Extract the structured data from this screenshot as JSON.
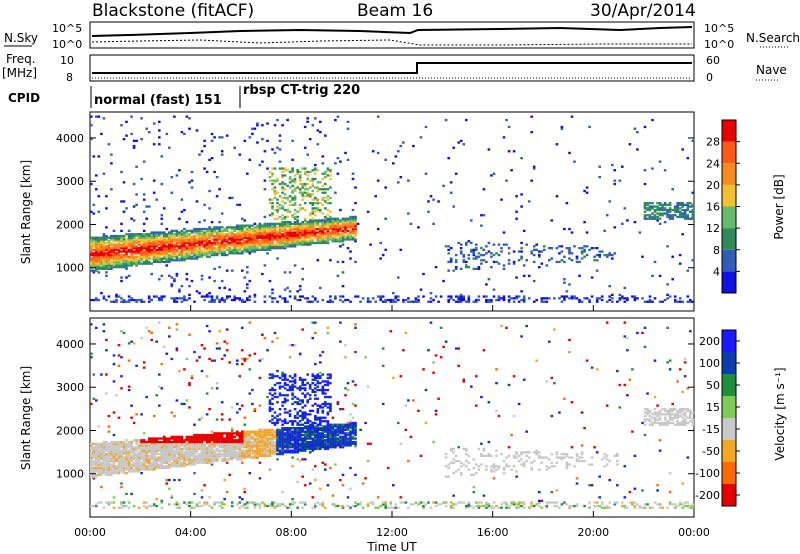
{
  "header": {
    "station": "Blackstone (fitACF)",
    "beam": "Beam 16",
    "date": "30/Apr/2014"
  },
  "top_panels": {
    "nsky_label": "N.Sky",
    "nsearch_label": "N.Search",
    "freq_label": "Freq.",
    "freq_unit": "[MHz]",
    "nave_label": "Nave",
    "cpid_label": "CPID",
    "nsky_ticks_left": [
      "10^5",
      "10^0"
    ],
    "nsky_ticks_right": [
      "10^5",
      "10^0"
    ],
    "freq_ticks": [
      "10",
      "8"
    ],
    "nave_ticks": [
      "60",
      "0"
    ],
    "cpid_segments": [
      {
        "label": "normal (fast) 151",
        "start_h": 0,
        "end_h": 6
      },
      {
        "label": "rbsp CT-trig 220",
        "start_h": 6,
        "end_h": 24
      }
    ]
  },
  "chart_data": [
    {
      "type": "heatmap",
      "title": "",
      "xlabel": "",
      "ylabel": "Slant Range [km]",
      "xlim": [
        0,
        24
      ],
      "ylim": [
        0,
        4600
      ],
      "y_ticks": [
        1000,
        2000,
        3000,
        4000
      ],
      "x_ticks": [
        0,
        4,
        8,
        12,
        16,
        20,
        24
      ],
      "colorbar": {
        "label": "Power [dB]",
        "ticks": [
          4,
          8,
          12,
          16,
          20,
          24,
          28
        ],
        "range": [
          0,
          32
        ],
        "colors": [
          "#1010e0",
          "#2f5db8",
          "#2e8b57",
          "#66bb6a",
          "#f2c12e",
          "#f58a1e",
          "#ff5a14",
          "#e60000"
        ]
      },
      "features": [
        {
          "name": "main echo band",
          "t_start": 0,
          "t_end": 10.5,
          "range_km": [
            900,
            2100
          ],
          "peak_db": 26
        },
        {
          "name": "afternoon scatter",
          "t_start": 14,
          "t_end": 21,
          "range_km": [
            900,
            1600
          ],
          "peak_db": 8
        },
        {
          "name": "evening patch",
          "t_start": 22,
          "t_end": 24,
          "range_km": [
            2100,
            2500
          ],
          "peak_db": 10
        }
      ]
    },
    {
      "type": "heatmap",
      "title": "",
      "xlabel": "Time UT",
      "ylabel": "Slant Range [km]",
      "xlim": [
        0,
        24
      ],
      "ylim": [
        0,
        4600
      ],
      "y_ticks": [
        1000,
        2000,
        3000,
        4000
      ],
      "x_ticks": [
        0,
        4,
        8,
        12,
        16,
        20,
        24
      ],
      "x_tick_labels": [
        "00:00",
        "04:00",
        "08:00",
        "12:00",
        "16:00",
        "20:00",
        "00:00"
      ],
      "colorbar": {
        "label": "Velocity [m s⁻¹]",
        "ticks": [
          200,
          100,
          50,
          15,
          -15,
          -50,
          -100,
          -200
        ],
        "colors": [
          "#1a1aff",
          "#0d3bb0",
          "#1f8f3a",
          "#7ccc55",
          "#c8c8c8",
          "#f5a623",
          "#ff6a00",
          "#e60000"
        ]
      },
      "features": [
        {
          "name": "ground scatter band",
          "t_start": 0,
          "t_end": 6,
          "range_km": [
            800,
            1500
          ],
          "velocity": 0
        },
        {
          "name": "westward flow",
          "t_start": 2,
          "t_end": 5,
          "range_km": [
            1700,
            2300
          ],
          "velocity": -200
        },
        {
          "name": "eastward flow",
          "t_start": 7,
          "t_end": 10.5,
          "range_km": [
            1400,
            2200
          ],
          "velocity": 120
        }
      ]
    }
  ]
}
